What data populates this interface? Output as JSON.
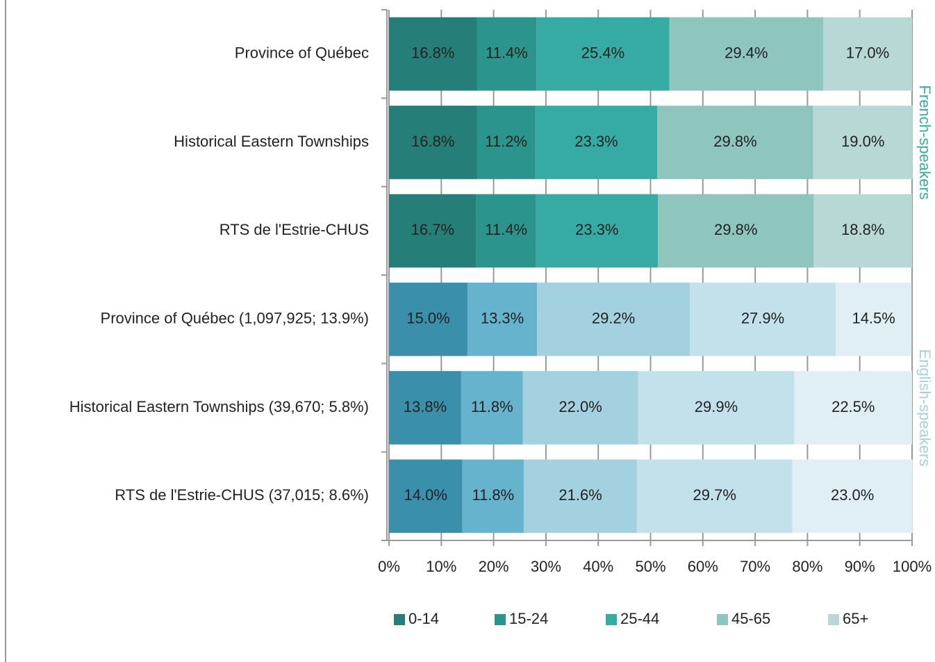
{
  "chart_data": {
    "type": "bar",
    "orientation": "horizontal",
    "stacked": true,
    "groups": [
      {
        "label": "French-speakers",
        "categories": [
          "Province of Québec",
          "Historical Eastern Townships",
          "RTS de l'Estrie-CHUS"
        ],
        "series": [
          {
            "name": "0-14",
            "color": "#257f78",
            "values": [
              16.8,
              16.8,
              16.7
            ],
            "value_labels": [
              "16.8%",
              "16.8%",
              "16.7%"
            ]
          },
          {
            "name": "15-24",
            "color": "#2b958d",
            "values": [
              11.4,
              11.2,
              11.4
            ],
            "value_labels": [
              "11.4%",
              "11.2%",
              "11.4%"
            ]
          },
          {
            "name": "25-44",
            "color": "#35aba3",
            "values": [
              25.4,
              23.3,
              23.3
            ],
            "value_labels": [
              "25.4%",
              "23.3%",
              "23.3%"
            ]
          },
          {
            "name": "45-65",
            "color": "#8ec5bd",
            "values": [
              29.4,
              29.8,
              29.8
            ],
            "value_labels": [
              "29.4%",
              "29.8%",
              "29.8%"
            ]
          },
          {
            "name": "65+",
            "color": "#b7d8d4",
            "values": [
              17.0,
              19.0,
              18.8
            ],
            "value_labels": [
              "17.0%",
              "19.0%",
              "18.8%"
            ]
          }
        ]
      },
      {
        "label": "English-speakers",
        "categories": [
          "Province of Québec (1,097,925; 13.9%)",
          "Historical Eastern Townships (39,670; 5.8%)",
          "RTS de l'Estrie-CHUS (37,015; 8.6%)"
        ],
        "series": [
          {
            "color": "#3a8faa",
            "values": [
              15.0,
              13.8,
              14.0
            ],
            "value_labels": [
              "15.0%",
              "13.8%",
              "14.0%"
            ]
          },
          {
            "color": "#65b3cc",
            "values": [
              13.3,
              11.8,
              11.8
            ],
            "value_labels": [
              "13.3%",
              "11.8%",
              "11.8%"
            ]
          },
          {
            "color": "#a3d1df",
            "values": [
              29.2,
              22.0,
              21.6
            ],
            "value_labels": [
              "29.2%",
              "22.0%",
              "21.6%"
            ]
          },
          {
            "color": "#c3e1ea",
            "values": [
              27.9,
              29.9,
              29.7
            ],
            "value_labels": [
              "27.9%",
              "29.9%",
              "29.7%"
            ]
          },
          {
            "color": "#e0eff4",
            "values": [
              14.5,
              22.5,
              23.0
            ],
            "value_labels": [
              "14.5%",
              "22.5%",
              "23.0%"
            ]
          }
        ]
      }
    ],
    "xlim": [
      0,
      100
    ],
    "xticks": [
      {
        "value": 0,
        "label": "0%"
      },
      {
        "value": 10,
        "label": "10%"
      },
      {
        "value": 20,
        "label": "20%"
      },
      {
        "value": 30,
        "label": "30%"
      },
      {
        "value": 40,
        "label": "40%"
      },
      {
        "value": 50,
        "label": "50%"
      },
      {
        "value": 60,
        "label": "60%"
      },
      {
        "value": 70,
        "label": "70%"
      },
      {
        "value": 80,
        "label": "80%"
      },
      {
        "value": 90,
        "label": "90%"
      },
      {
        "value": 100,
        "label": "100%"
      }
    ],
    "legend": "bottom"
  }
}
